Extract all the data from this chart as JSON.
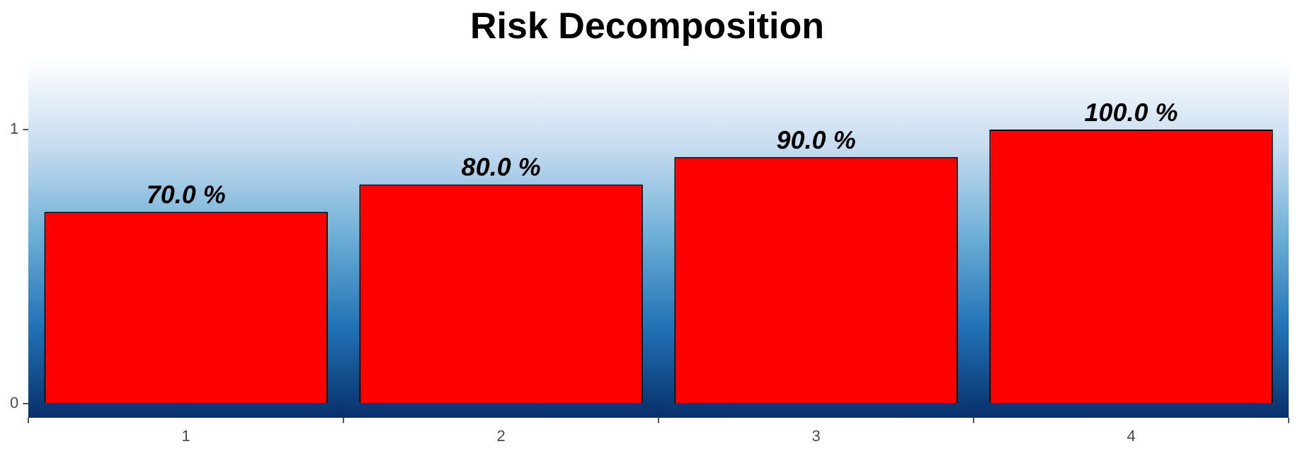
{
  "chart_data": {
    "type": "bar",
    "title": "Risk Decomposition",
    "categories": [
      "1",
      "2",
      "3",
      "4"
    ],
    "values": [
      0.7,
      0.8,
      0.9,
      1.0
    ],
    "color": "#ff0000",
    "value_labels": [
      "70.0 %",
      "80.0 %",
      "90.0 %",
      "100.0 %"
    ],
    "ylim": [
      -0.05,
      1.26
    ],
    "yticks": [
      0,
      1
    ],
    "grid": false,
    "legend": false
  }
}
